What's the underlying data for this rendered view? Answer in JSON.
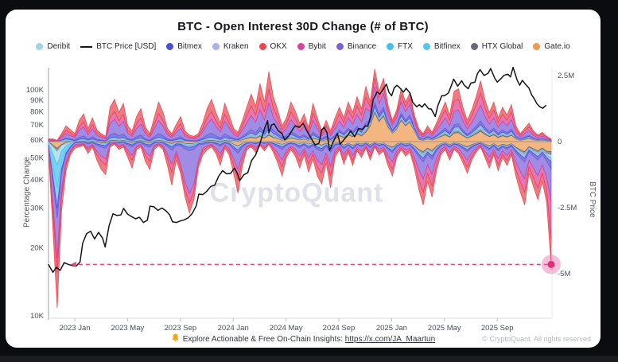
{
  "header": {
    "title": "BTC - Open Interest 30D Change (# of BTC)"
  },
  "watermark": {
    "text": "CryptoQuant"
  },
  "footer": {
    "bell_icon": "bell-icon",
    "insight_text": "Explore Actionable & Free On-Chain Insights: ",
    "insight_link": "https://x.com/JA_Maartun",
    "copyright": "© CryptoQuant. All rights reserved"
  },
  "legend": [
    {
      "key": "deribit",
      "label": "Deribit",
      "color": "#9ed4e6",
      "type": "dot"
    },
    {
      "key": "btc_price",
      "label": "BTC Price [USD]",
      "color": "#17181b",
      "type": "line"
    },
    {
      "key": "bitmex",
      "label": "Bitmex",
      "color": "#4a4fd3",
      "type": "dot"
    },
    {
      "key": "kraken",
      "label": "Kraken",
      "color": "#a8b1e8",
      "type": "dot"
    },
    {
      "key": "okx",
      "label": "OKX",
      "color": "#e84852",
      "type": "dot"
    },
    {
      "key": "bybit",
      "label": "Bybit",
      "color": "#db4397",
      "type": "dot"
    },
    {
      "key": "binance",
      "label": "Binance",
      "color": "#7c5fd9",
      "type": "dot"
    },
    {
      "key": "ftx",
      "label": "FTX",
      "color": "#45c0e8",
      "type": "dot"
    },
    {
      "key": "bitfinex",
      "label": "Bitfinex",
      "color": "#56c5ea",
      "type": "dot"
    },
    {
      "key": "htx_global",
      "label": "HTX Global",
      "color": "#646b77",
      "type": "dot"
    },
    {
      "key": "gateio",
      "label": "Gate.io",
      "color": "#f09a51",
      "type": "dot"
    }
  ],
  "chart_data": {
    "type": "area",
    "subtype": "stacked_area_with_price_line",
    "title": "BTC - Open Interest 30D Change (# of BTC)",
    "ylabel_left": "Percentage Change",
    "ylabel_right": "BTC Price",
    "left_axis_scale": "log_btc_price_usd",
    "right_axis_scale": "open_interest_change_btc",
    "axes": {
      "x_ticks": [
        [
          "2023 Jan",
          2
        ],
        [
          "2023 May",
          6
        ],
        [
          "2023 Sep",
          10
        ],
        [
          "2024 Jan",
          14
        ],
        [
          "2024 May",
          18
        ],
        [
          "2024 Sep",
          22
        ],
        [
          "2025 Jan",
          26
        ],
        [
          "2025 May",
          30
        ],
        [
          "2025 Sep",
          34
        ]
      ],
      "left_ticks": [
        [
          "100K",
          100
        ],
        [
          "90K",
          90
        ],
        [
          "80K",
          80
        ],
        [
          "70K",
          70
        ],
        [
          "60K",
          60
        ],
        [
          "50K",
          50
        ],
        [
          "40K",
          40
        ],
        [
          "30K",
          30
        ],
        [
          "20K",
          20
        ],
        [
          "10K",
          10
        ]
      ],
      "right_ticks": [
        [
          "2.5M",
          2.5
        ],
        [
          "0",
          0
        ],
        [
          "-2.5M",
          -2.5
        ],
        [
          "-5M",
          -5
        ]
      ],
      "x_domain_months_from_2022_11": [
        0,
        38.1
      ],
      "right_range_m": [
        -6.6,
        2.8
      ]
    },
    "annotation": {
      "dashed_line_value_m": -4.65,
      "arrow_m": 1.75,
      "dot_m": 38.08,
      "color": "#f0437f"
    },
    "stack_order": [
      "gateio",
      "htx_global",
      "deribit",
      "ftx",
      "bitfinex",
      "kraken",
      "bitmex",
      "binance",
      "bybit",
      "okx"
    ],
    "btc_price": [
      [
        0,
        16.9
      ],
      [
        0.35,
        15.6
      ],
      [
        0.6,
        16.4
      ],
      [
        0.9,
        15.9
      ],
      [
        1.2,
        17.2
      ],
      [
        1.5,
        16.9
      ],
      [
        1.8,
        16.7
      ],
      [
        2.1,
        16.6
      ],
      [
        2.4,
        17.3
      ],
      [
        2.6,
        21.0
      ],
      [
        2.9,
        23.1
      ],
      [
        3.2,
        23.7
      ],
      [
        3.5,
        21.9
      ],
      [
        3.8,
        23.4
      ],
      [
        4.1,
        22.1
      ],
      [
        4.3,
        20.2
      ],
      [
        4.6,
        25.1
      ],
      [
        4.9,
        28.3
      ],
      [
        5.2,
        27.8
      ],
      [
        5.5,
        28.0
      ],
      [
        5.7,
        29.9
      ],
      [
        6.0,
        28.2
      ],
      [
        6.3,
        27.5
      ],
      [
        6.6,
        26.9
      ],
      [
        6.9,
        27.3
      ],
      [
        7.2,
        25.9
      ],
      [
        7.5,
        26.5
      ],
      [
        7.7,
        30.6
      ],
      [
        8.0,
        30.4
      ],
      [
        8.3,
        29.3
      ],
      [
        8.6,
        30.0
      ],
      [
        8.9,
        29.2
      ],
      [
        9.2,
        27.9
      ],
      [
        9.4,
        26.1
      ],
      [
        9.7,
        25.9
      ],
      [
        10.0,
        26.3
      ],
      [
        10.3,
        26.6
      ],
      [
        10.6,
        27.2
      ],
      [
        10.9,
        28.4
      ],
      [
        11.2,
        30.7
      ],
      [
        11.4,
        34.6
      ],
      [
        11.7,
        34.4
      ],
      [
        12.0,
        35.6
      ],
      [
        12.3,
        37.4
      ],
      [
        12.6,
        37.9
      ],
      [
        12.9,
        41.5
      ],
      [
        13.2,
        43.9
      ],
      [
        13.5,
        42.5
      ],
      [
        13.8,
        42.7
      ],
      [
        14.1,
        45.1
      ],
      [
        14.3,
        42.9
      ],
      [
        14.5,
        39.7
      ],
      [
        14.8,
        42.1
      ],
      [
        15.1,
        43.0
      ],
      [
        15.4,
        48.8
      ],
      [
        15.7,
        51.5
      ],
      [
        16.0,
        57.3
      ],
      [
        16.2,
        62.5
      ],
      [
        16.4,
        68.1
      ],
      [
        16.6,
        73.0
      ],
      [
        16.7,
        64.5
      ],
      [
        16.9,
        69.8
      ],
      [
        17.1,
        70.8
      ],
      [
        17.4,
        66.1
      ],
      [
        17.7,
        64.0
      ],
      [
        17.9,
        60.1
      ],
      [
        18.2,
        62.4
      ],
      [
        18.5,
        66.9
      ],
      [
        18.7,
        69.4
      ],
      [
        19.0,
        68.3
      ],
      [
        19.3,
        71.1
      ],
      [
        19.6,
        65.5
      ],
      [
        19.9,
        61.2
      ],
      [
        20.2,
        57.0
      ],
      [
        20.5,
        58.1
      ],
      [
        20.7,
        66.5
      ],
      [
        20.9,
        68.2
      ],
      [
        21.1,
        64.6
      ],
      [
        21.3,
        53.9
      ],
      [
        21.6,
        59.4
      ],
      [
        21.9,
        64.1
      ],
      [
        22.1,
        57.5
      ],
      [
        22.4,
        60.3
      ],
      [
        22.7,
        63.2
      ],
      [
        22.9,
        65.8
      ],
      [
        23.2,
        62.1
      ],
      [
        23.5,
        67.4
      ],
      [
        23.8,
        67.0
      ],
      [
        24.0,
        69.4
      ],
      [
        24.2,
        69.0
      ],
      [
        24.4,
        76.0
      ],
      [
        24.6,
        90.5
      ],
      [
        24.9,
        98.0
      ],
      [
        25.1,
        95.9
      ],
      [
        25.4,
        101.2
      ],
      [
        25.6,
        106.1
      ],
      [
        25.8,
        97.5
      ],
      [
        26.0,
        94.2
      ],
      [
        26.2,
        102.1
      ],
      [
        26.4,
        104.8
      ],
      [
        26.6,
        102.3
      ],
      [
        26.9,
        97.8
      ],
      [
        27.1,
        101.6
      ],
      [
        27.4,
        96.6
      ],
      [
        27.6,
        88.0
      ],
      [
        27.9,
        84.3
      ],
      [
        28.1,
        86.0
      ],
      [
        28.3,
        83.9
      ],
      [
        28.5,
        86.8
      ],
      [
        28.8,
        82.5
      ],
      [
        29.0,
        82.3
      ],
      [
        29.3,
        76.3
      ],
      [
        29.5,
        85.2
      ],
      [
        29.8,
        94.3
      ],
      [
        30.0,
        94.2
      ],
      [
        30.3,
        97.0
      ],
      [
        30.5,
        103.7
      ],
      [
        30.7,
        111.7
      ],
      [
        31.0,
        103.9
      ],
      [
        31.3,
        109.8
      ],
      [
        31.5,
        104.9
      ],
      [
        31.8,
        101.2
      ],
      [
        32.0,
        107.2
      ],
      [
        32.3,
        108.1
      ],
      [
        32.5,
        118.0
      ],
      [
        32.7,
        123.0
      ],
      [
        33.0,
        115.8
      ],
      [
        33.3,
        118.5
      ],
      [
        33.5,
        124.3
      ],
      [
        33.8,
        112.9
      ],
      [
        34.0,
        108.3
      ],
      [
        34.3,
        112.4
      ],
      [
        34.5,
        115.9
      ],
      [
        34.8,
        117.4
      ],
      [
        35.0,
        114.1
      ],
      [
        35.2,
        125.9
      ],
      [
        35.5,
        110.8
      ],
      [
        35.7,
        104.9
      ],
      [
        35.9,
        110.2
      ],
      [
        36.1,
        106.5
      ],
      [
        36.4,
        102.0
      ],
      [
        36.6,
        95.1
      ],
      [
        36.8,
        91.4
      ],
      [
        37.0,
        86.9
      ],
      [
        37.2,
        84.4
      ],
      [
        37.45,
        82.9
      ],
      [
        37.7,
        85.5
      ]
    ],
    "oi": {
      "units": "millions_of_btc_equivalent_change",
      "x_start": 0,
      "x_step": 0.334,
      "pos_total": [
        0.1,
        0.1,
        0.05,
        0.3,
        0.6,
        0.45,
        0.3,
        0.8,
        1.05,
        0.5,
        0.9,
        0.45,
        0.3,
        0.2,
        1.3,
        1.6,
        1.1,
        1.45,
        0.6,
        0.4,
        0.95,
        1.25,
        0.55,
        0.3,
        0.9,
        1.5,
        1.1,
        0.5,
        0.3,
        0.65,
        0.95,
        0.4,
        0.25,
        0.2,
        0.3,
        0.7,
        1.25,
        1.6,
        1.1,
        0.7,
        1.45,
        1.0,
        0.5,
        0.35,
        0.8,
        1.3,
        1.8,
        1.35,
        2.2,
        1.5,
        2.65,
        1.7,
        1.2,
        0.6,
        0.9,
        1.5,
        1.15,
        0.7,
        1.05,
        0.5,
        1.45,
        0.9,
        0.4,
        0.8,
        0.4,
        0.9,
        1.3,
        0.9,
        1.5,
        1.1,
        1.7,
        1.25,
        2.1,
        1.5,
        2.75,
        1.9,
        2.4,
        1.4,
        0.8,
        1.2,
        2.0,
        1.5,
        1.85,
        1.0,
        0.5,
        0.3,
        0.6,
        0.35,
        0.7,
        1.1,
        1.5,
        1.0,
        1.9,
        2.0,
        1.3,
        0.8,
        1.2,
        1.7,
        2.3,
        1.6,
        1.1,
        1.5,
        0.9,
        1.3,
        1.0,
        1.4,
        0.6,
        0.3,
        0.5,
        0.7,
        0.4,
        0.25,
        0.35,
        0.2,
        0.1
      ],
      "neg_total": [
        0.3,
        3.2,
        6.3,
        2.6,
        1.1,
        0.5,
        0.25,
        0.2,
        0.15,
        0.45,
        0.2,
        0.7,
        1.05,
        1.25,
        0.2,
        0.1,
        0.3,
        0.2,
        0.6,
        1.0,
        0.3,
        0.2,
        0.75,
        1.05,
        0.3,
        0.15,
        0.3,
        0.9,
        1.65,
        0.7,
        1.2,
        2.1,
        2.7,
        2.2,
        1.0,
        0.5,
        0.3,
        0.2,
        0.45,
        0.9,
        0.25,
        0.5,
        1.2,
        1.95,
        0.9,
        0.3,
        0.2,
        0.4,
        0.15,
        0.35,
        0.1,
        0.4,
        0.8,
        1.3,
        0.6,
        0.3,
        0.55,
        1.0,
        0.5,
        1.15,
        0.65,
        1.3,
        1.6,
        0.8,
        1.75,
        0.6,
        0.3,
        0.85,
        0.4,
        0.9,
        0.35,
        0.6,
        0.25,
        0.7,
        0.2,
        0.5,
        0.35,
        0.9,
        1.3,
        0.6,
        0.3,
        0.55,
        0.4,
        1.0,
        1.8,
        2.4,
        1.5,
        2.1,
        1.1,
        0.5,
        0.3,
        0.7,
        0.3,
        0.45,
        0.8,
        1.2,
        0.7,
        0.4,
        0.2,
        0.6,
        1.0,
        0.5,
        1.1,
        0.6,
        0.9,
        0.5,
        1.3,
        1.9,
        2.4,
        1.2,
        1.7,
        2.2,
        1.5,
        2.3,
        4.65
      ],
      "weights": {
        "eras": [
          {
            "from": 0,
            "to": 5,
            "pos": {
              "gateio": 0.05,
              "htx_global": 0.02,
              "deribit": 0.03,
              "ftx": 0.02,
              "bitfinex": 0.02,
              "kraken": 0.03,
              "bitmex": 0.06,
              "binance": 0.27,
              "bybit": 0.2,
              "okx": 0.3
            },
            "neg": {
              "gateio": 0.04,
              "htx_global": 0.02,
              "deribit": 0.08,
              "ftx": 0.14,
              "bitfinex": 0.09,
              "kraken": 0.03,
              "bitmex": 0.06,
              "binance": 0.24,
              "bybit": 0.09,
              "okx": 0.21
            }
          },
          {
            "from": 6,
            "to": 41,
            "pos": {
              "gateio": 0.03,
              "htx_global": 0.02,
              "deribit": 0.02,
              "ftx": 0,
              "bitfinex": 0.01,
              "kraken": 0.03,
              "bitmex": 0.09,
              "binance": 0.33,
              "bybit": 0.18,
              "okx": 0.29
            },
            "neg": {
              "gateio": 0.04,
              "htx_global": 0.02,
              "deribit": 0.02,
              "ftx": 0,
              "bitfinex": 0.01,
              "kraken": 0.03,
              "bitmex": 0.08,
              "binance": 0.32,
              "bybit": 0.18,
              "okx": 0.3
            }
          },
          {
            "from": 42,
            "to": 65,
            "pos": {
              "gateio": 0.09,
              "htx_global": 0.03,
              "deribit": 0.02,
              "ftx": 0,
              "bitfinex": 0.01,
              "kraken": 0.03,
              "bitmex": 0.07,
              "binance": 0.3,
              "bybit": 0.2,
              "okx": 0.25
            },
            "neg": {
              "gateio": 0.08,
              "htx_global": 0.02,
              "deribit": 0.02,
              "ftx": 0,
              "bitfinex": 0.01,
              "kraken": 0.03,
              "bitmex": 0.07,
              "binance": 0.31,
              "bybit": 0.2,
              "okx": 0.26
            }
          },
          {
            "from": 66,
            "to": 114,
            "pos": {
              "gateio": 0.17,
              "htx_global": 0.05,
              "deribit": 0.025,
              "ftx": 0,
              "bitfinex": 0.01,
              "kraken": 0.025,
              "bitmex": 0.06,
              "binance": 0.26,
              "bybit": 0.2,
              "okx": 0.2
            },
            "neg": {
              "gateio": 0.16,
              "htx_global": 0.04,
              "deribit": 0.02,
              "ftx": 0,
              "bitfinex": 0.01,
              "kraken": 0.03,
              "bitmex": 0.06,
              "binance": 0.27,
              "bybit": 0.21,
              "okx": 0.2
            }
          }
        ],
        "overrides": [
          {
            "from": 30,
            "to": 34,
            "sign": "neg",
            "w": {
              "gateio": 0.03,
              "htx_global": 0.01,
              "deribit": 0.01,
              "ftx": 0,
              "bitfinex": 0.01,
              "kraken": 0.02,
              "bitmex": 0.05,
              "binance": 0.6,
              "bybit": 0.13,
              "okx": 0.14
            }
          },
          {
            "from": 73,
            "to": 83,
            "sign": "pos",
            "w": {
              "gateio": 0.4,
              "htx_global": 0.04,
              "deribit": 0.02,
              "ftx": 0,
              "bitfinex": 0.01,
              "kraken": 0.02,
              "bitmex": 0.05,
              "binance": 0.22,
              "bybit": 0.12,
              "okx": 0.12
            }
          },
          {
            "from": 114,
            "to": 114,
            "sign": "neg",
            "w": {
              "gateio": 0.08,
              "htx_global": 0.03,
              "deribit": 0.02,
              "ftx": 0,
              "bitfinex": 0.01,
              "kraken": 0.02,
              "bitmex": 0.06,
              "binance": 0.26,
              "bybit": 0.31,
              "okx": 0.21
            }
          }
        ]
      }
    }
  }
}
